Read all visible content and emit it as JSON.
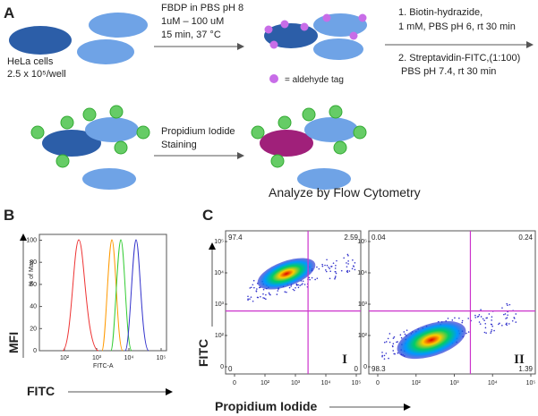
{
  "panel_a": {
    "label": "A",
    "cells": {
      "line1": "HeLa cells",
      "line2": "2.5 x 10⁵/well"
    },
    "step1": {
      "line1": "FBDP in PBS pH 8",
      "line2": "1uM – 100 uM",
      "line3": "15 min, 37 °C"
    },
    "step2": {
      "line1": "1.    Biotin-hydrazide,",
      "line2": "1 mM, PBS pH 6, rt 30 min",
      "line3": "2. Streptavidin-FITC,(1:100)",
      "line4": "PBS pH 7.4, rt 30 min"
    },
    "legend": "= aldehyde tag",
    "step3": {
      "line1": "Propidium Iodide",
      "line2": "Staining"
    },
    "footer": "Analyze by Flow Cytometry"
  },
  "panel_b": {
    "label": "B",
    "y_title": "MFI",
    "y_axis_label": "% of Max",
    "yticks": [
      "0",
      "20",
      "40",
      "60",
      "80",
      "100"
    ],
    "xticks": [
      "10²",
      "10³",
      "10⁴",
      "10⁵"
    ],
    "x_axis_label": "FITC-A",
    "x_title": "FITC"
  },
  "panel_c": {
    "label": "C",
    "y_title": "FITC",
    "x_title": "Propidium Iodide",
    "yticks": [
      "10⁵",
      "10⁴",
      "10³",
      "10²",
      "0"
    ],
    "xticks": [
      "0",
      "10²",
      "10³",
      "10⁴",
      "10⁵"
    ],
    "plots": [
      {
        "name": "I",
        "quadrants": {
          "ul": "97.4",
          "ur": "2.59",
          "ll": "0",
          "lr": "0"
        }
      },
      {
        "name": "II",
        "quadrants": {
          "ul": "0.04",
          "ur": "0.24",
          "ll": "98.3",
          "lr": "1.39"
        }
      }
    ]
  }
}
